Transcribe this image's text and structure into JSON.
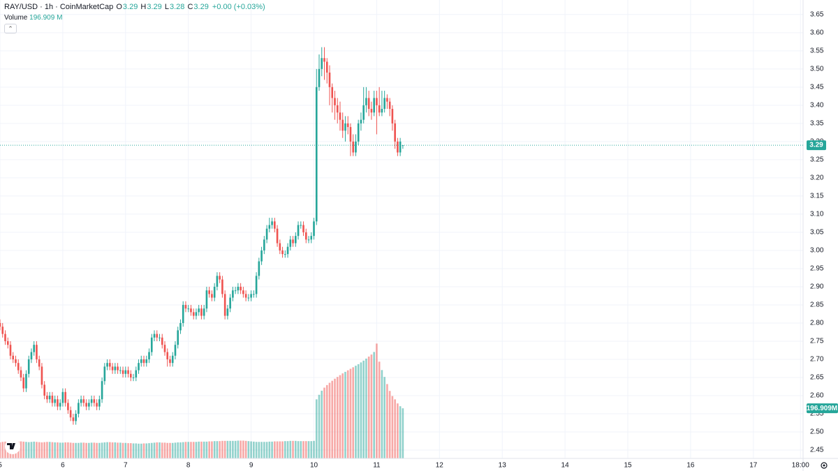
{
  "chart_data": {
    "type": "candlestick",
    "title": "RAY/USD · 1h · CoinMarketCap",
    "legend": [
      {
        "label": "O",
        "value": "3.29"
      },
      {
        "label": "H",
        "value": "3.29"
      },
      {
        "label": "L",
        "value": "3.28"
      },
      {
        "label": "C",
        "value": "3.29"
      }
    ],
    "change": "+0.00 (+0.03%)",
    "volume_title": "Volume",
    "volume_legend_label": "196.909 M",
    "volume_axis_label": "196.909M",
    "up_color": "#26a69a",
    "down_color": "#ef5350",
    "grid": true,
    "last_price": 3.29,
    "xlim": [
      0,
      307
    ],
    "xticks": [
      {
        "value": 0,
        "label": "5"
      },
      {
        "value": 24,
        "label": "6"
      },
      {
        "value": 48,
        "label": "7"
      },
      {
        "value": 72,
        "label": "8"
      },
      {
        "value": 96,
        "label": "9"
      },
      {
        "value": 120,
        "label": "10"
      },
      {
        "value": 144,
        "label": "11"
      },
      {
        "value": 168,
        "label": "12"
      },
      {
        "value": 192,
        "label": "13"
      },
      {
        "value": 216,
        "label": "14"
      },
      {
        "value": 240,
        "label": "15"
      },
      {
        "value": 264,
        "label": "16"
      },
      {
        "value": 288,
        "label": "17"
      },
      {
        "value": 306,
        "label": "18:00"
      }
    ],
    "ylim": [
      2.427,
      3.69
    ],
    "yticks": [
      2.45,
      {
        "value": 2.5,
        "label": "2.50"
      },
      2.55,
      {
        "value": 2.6,
        "label": "2.60"
      },
      2.65,
      {
        "value": 2.7,
        "label": "2.70"
      },
      2.75,
      {
        "value": 2.8,
        "label": "2.80"
      },
      2.85,
      {
        "value": 2.9,
        "label": "2.90"
      },
      2.95,
      {
        "value": 3,
        "label": "3.00"
      },
      3.05,
      {
        "value": 3.1,
        "label": "3.10"
      },
      3.15,
      {
        "value": 3.2,
        "label": "3.20"
      },
      3.25,
      {
        "value": 3.3,
        "label": "3.30"
      },
      3.35,
      {
        "value": 3.4,
        "label": "3.40"
      },
      3.45,
      {
        "value": 3.5,
        "label": "3.50"
      },
      3.55,
      {
        "value": 3.6,
        "label": "3.60"
      },
      3.65
    ],
    "vlim": [
      0,
      1800
    ],
    "x": [
      0,
      1,
      2,
      3,
      4,
      5,
      6,
      7,
      8,
      9,
      10,
      11,
      12,
      13,
      14,
      15,
      16,
      17,
      18,
      19,
      20,
      21,
      22,
      23,
      24,
      25,
      26,
      27,
      28,
      29,
      30,
      31,
      32,
      33,
      34,
      35,
      36,
      37,
      38,
      39,
      40,
      41,
      42,
      43,
      44,
      45,
      46,
      47,
      48,
      49,
      50,
      51,
      52,
      53,
      54,
      55,
      56,
      57,
      58,
      59,
      60,
      61,
      62,
      63,
      64,
      65,
      66,
      67,
      68,
      69,
      70,
      71,
      72,
      73,
      74,
      75,
      76,
      77,
      78,
      79,
      80,
      81,
      82,
      83,
      84,
      85,
      86,
      87,
      88,
      89,
      90,
      91,
      92,
      93,
      94,
      95,
      96,
      97,
      98,
      99,
      100,
      101,
      102,
      103,
      104,
      105,
      106,
      107,
      108,
      109,
      110,
      111,
      112,
      113,
      114,
      115,
      116,
      117,
      118,
      119,
      120,
      121,
      122,
      123,
      124,
      125,
      126,
      127,
      128,
      129,
      130,
      131,
      132,
      133,
      134,
      135,
      136,
      137,
      138,
      139,
      140,
      141,
      142,
      143,
      144,
      145,
      146,
      147,
      148,
      149,
      150,
      151,
      152,
      153,
      154
    ],
    "open": [
      2.8,
      2.79,
      2.77,
      2.75,
      2.74,
      2.71,
      2.7,
      2.69,
      2.67,
      2.65,
      2.62,
      2.66,
      2.7,
      2.72,
      2.74,
      2.7,
      2.68,
      2.63,
      2.6,
      2.59,
      2.6,
      2.58,
      2.59,
      2.57,
      2.58,
      2.61,
      2.58,
      2.56,
      2.54,
      2.53,
      2.55,
      2.58,
      2.59,
      2.58,
      2.57,
      2.58,
      2.59,
      2.58,
      2.57,
      2.59,
      2.64,
      2.68,
      2.69,
      2.68,
      2.67,
      2.68,
      2.67,
      2.67,
      2.66,
      2.67,
      2.66,
      2.65,
      2.65,
      2.67,
      2.69,
      2.7,
      2.69,
      2.7,
      2.72,
      2.76,
      2.77,
      2.76,
      2.76,
      2.74,
      2.72,
      2.7,
      2.69,
      2.71,
      2.74,
      2.78,
      2.8,
      2.85,
      2.84,
      2.84,
      2.83,
      2.82,
      2.83,
      2.84,
      2.82,
      2.84,
      2.89,
      2.88,
      2.87,
      2.9,
      2.93,
      2.92,
      2.88,
      2.82,
      2.84,
      2.87,
      2.89,
      2.89,
      2.9,
      2.89,
      2.88,
      2.87,
      2.87,
      2.88,
      2.88,
      2.93,
      2.97,
      3.0,
      3.03,
      3.06,
      3.07,
      3.08,
      3.06,
      3.02,
      3.0,
      2.99,
      2.99,
      3.01,
      3.03,
      3.02,
      3.04,
      3.07,
      3.07,
      3.05,
      3.03,
      3.03,
      3.04,
      3.08,
      3.45,
      3.5,
      3.53,
      3.52,
      3.49,
      3.45,
      3.42,
      3.4,
      3.38,
      3.36,
      3.33,
      3.35,
      3.34,
      3.3,
      3.27,
      3.3,
      3.35,
      3.36,
      3.4,
      3.42,
      3.39,
      3.38,
      3.42,
      3.4,
      3.38,
      3.39,
      3.42,
      3.41,
      3.39,
      3.35,
      3.3,
      3.27,
      3.29
    ],
    "high": [
      2.81,
      2.8,
      2.78,
      2.76,
      2.75,
      2.72,
      2.71,
      2.7,
      2.68,
      2.66,
      2.67,
      2.71,
      2.73,
      2.75,
      2.75,
      2.71,
      2.69,
      2.64,
      2.61,
      2.61,
      2.61,
      2.6,
      2.6,
      2.59,
      2.62,
      2.62,
      2.59,
      2.57,
      2.55,
      2.56,
      2.59,
      2.6,
      2.6,
      2.59,
      2.59,
      2.6,
      2.6,
      2.59,
      2.6,
      2.65,
      2.69,
      2.7,
      2.7,
      2.69,
      2.69,
      2.69,
      2.68,
      2.68,
      2.68,
      2.68,
      2.67,
      2.66,
      2.68,
      2.7,
      2.71,
      2.71,
      2.71,
      2.73,
      2.77,
      2.78,
      2.78,
      2.77,
      2.77,
      2.75,
      2.73,
      2.71,
      2.72,
      2.75,
      2.79,
      2.81,
      2.86,
      2.86,
      2.85,
      2.85,
      2.84,
      2.84,
      2.85,
      2.85,
      2.85,
      2.9,
      2.9,
      2.89,
      2.91,
      2.94,
      2.94,
      2.93,
      2.89,
      2.85,
      2.88,
      2.9,
      2.9,
      2.91,
      2.91,
      2.9,
      2.89,
      2.88,
      2.89,
      2.89,
      2.94,
      2.98,
      3.01,
      3.04,
      3.07,
      3.09,
      3.09,
      3.09,
      3.07,
      3.03,
      3.01,
      3.0,
      3.02,
      3.04,
      3.04,
      3.05,
      3.08,
      3.08,
      3.08,
      3.06,
      3.04,
      3.05,
      3.09,
      3.5,
      3.54,
      3.56,
      3.56,
      3.53,
      3.51,
      3.46,
      3.44,
      3.42,
      3.41,
      3.38,
      3.37,
      3.37,
      3.35,
      3.32,
      3.32,
      3.36,
      3.38,
      3.45,
      3.45,
      3.44,
      3.41,
      3.44,
      3.44,
      3.45,
      3.44,
      3.44,
      3.43,
      3.42,
      3.4,
      3.36,
      3.31,
      3.31,
      3.29
    ],
    "low": [
      2.78,
      2.76,
      2.74,
      2.73,
      2.7,
      2.69,
      2.68,
      2.66,
      2.64,
      2.61,
      2.61,
      2.65,
      2.69,
      2.71,
      2.69,
      2.67,
      2.62,
      2.59,
      2.58,
      2.58,
      2.57,
      2.57,
      2.56,
      2.56,
      2.57,
      2.57,
      2.55,
      2.53,
      2.52,
      2.52,
      2.54,
      2.57,
      2.57,
      2.56,
      2.56,
      2.57,
      2.57,
      2.56,
      2.56,
      2.58,
      2.63,
      2.67,
      2.67,
      2.66,
      2.66,
      2.66,
      2.66,
      2.65,
      2.65,
      2.65,
      2.64,
      2.64,
      2.64,
      2.66,
      2.68,
      2.68,
      2.68,
      2.69,
      2.71,
      2.75,
      2.75,
      2.75,
      2.73,
      2.71,
      2.68,
      2.68,
      2.68,
      2.7,
      2.73,
      2.77,
      2.79,
      2.83,
      2.83,
      2.82,
      2.81,
      2.81,
      2.82,
      2.81,
      2.81,
      2.83,
      2.87,
      2.86,
      2.86,
      2.89,
      2.91,
      2.87,
      2.81,
      2.81,
      2.83,
      2.86,
      2.88,
      2.88,
      2.88,
      2.87,
      2.86,
      2.86,
      2.86,
      2.87,
      2.87,
      2.92,
      2.96,
      2.99,
      3.02,
      3.05,
      3.06,
      3.05,
      3.01,
      2.99,
      2.98,
      2.98,
      2.98,
      3.0,
      3.01,
      3.01,
      3.03,
      3.06,
      3.04,
      3.02,
      3.02,
      3.02,
      3.03,
      3.07,
      3.44,
      3.48,
      3.47,
      3.46,
      3.4,
      3.38,
      3.36,
      3.35,
      3.33,
      3.31,
      3.3,
      3.32,
      3.26,
      3.26,
      3.26,
      3.29,
      3.33,
      3.35,
      3.38,
      3.37,
      3.36,
      3.37,
      3.32,
      3.37,
      3.37,
      3.38,
      3.39,
      3.37,
      3.33,
      3.28,
      3.26,
      3.26,
      3.28
    ],
    "close": [
      2.79,
      2.77,
      2.75,
      2.74,
      2.71,
      2.7,
      2.69,
      2.67,
      2.65,
      2.62,
      2.66,
      2.7,
      2.72,
      2.74,
      2.7,
      2.68,
      2.63,
      2.6,
      2.59,
      2.6,
      2.58,
      2.59,
      2.57,
      2.58,
      2.61,
      2.58,
      2.56,
      2.54,
      2.53,
      2.55,
      2.58,
      2.59,
      2.58,
      2.57,
      2.58,
      2.59,
      2.58,
      2.57,
      2.59,
      2.64,
      2.68,
      2.69,
      2.68,
      2.67,
      2.68,
      2.67,
      2.67,
      2.66,
      2.67,
      2.66,
      2.65,
      2.65,
      2.67,
      2.69,
      2.7,
      2.69,
      2.7,
      2.72,
      2.76,
      2.77,
      2.76,
      2.76,
      2.74,
      2.72,
      2.7,
      2.69,
      2.71,
      2.74,
      2.78,
      2.8,
      2.85,
      2.84,
      2.84,
      2.83,
      2.82,
      2.83,
      2.84,
      2.82,
      2.84,
      2.89,
      2.88,
      2.87,
      2.9,
      2.93,
      2.92,
      2.88,
      2.82,
      2.84,
      2.87,
      2.89,
      2.89,
      2.9,
      2.89,
      2.88,
      2.87,
      2.87,
      2.88,
      2.88,
      2.93,
      2.97,
      3.0,
      3.03,
      3.06,
      3.07,
      3.08,
      3.06,
      3.02,
      3.0,
      2.99,
      2.99,
      3.01,
      3.03,
      3.02,
      3.04,
      3.07,
      3.07,
      3.05,
      3.03,
      3.03,
      3.04,
      3.08,
      3.45,
      3.5,
      3.53,
      3.52,
      3.49,
      3.45,
      3.42,
      3.4,
      3.38,
      3.36,
      3.33,
      3.35,
      3.34,
      3.3,
      3.27,
      3.3,
      3.35,
      3.36,
      3.4,
      3.42,
      3.39,
      3.38,
      3.42,
      3.4,
      3.38,
      3.39,
      3.42,
      3.41,
      3.39,
      3.35,
      3.3,
      3.27,
      3.3,
      3.29
    ],
    "volume": [
      63,
      65,
      66,
      65,
      64,
      63,
      65,
      66,
      67,
      66,
      65,
      64,
      65,
      66,
      65,
      64,
      63,
      64,
      65,
      65,
      64,
      63,
      63,
      62,
      62,
      63,
      63,
      62,
      61,
      61,
      61,
      62,
      62,
      61,
      61,
      62,
      62,
      61,
      61,
      62,
      63,
      64,
      64,
      63,
      63,
      62,
      62,
      61,
      61,
      60,
      60,
      59,
      59,
      58,
      58,
      59,
      59,
      60,
      61,
      62,
      63,
      63,
      62,
      62,
      61,
      61,
      61,
      62,
      63,
      63,
      64,
      65,
      65,
      65,
      65,
      65,
      66,
      66,
      66,
      66,
      67,
      67,
      68,
      68,
      68,
      69,
      69,
      69,
      69,
      69,
      69,
      70,
      70,
      70,
      69,
      68,
      67,
      66,
      65,
      65,
      65,
      65,
      65,
      66,
      66,
      67,
      67,
      67,
      67,
      68,
      68,
      69,
      69,
      69,
      68,
      68,
      68,
      68,
      68,
      68,
      69,
      232,
      250,
      266,
      278,
      288,
      297,
      305,
      313,
      320,
      327,
      334,
      340,
      346,
      352,
      358,
      364,
      370,
      377,
      384,
      392,
      400,
      408,
      418,
      451,
      380,
      347,
      320,
      292,
      265,
      245,
      232,
      216,
      205,
      196.909
    ]
  }
}
